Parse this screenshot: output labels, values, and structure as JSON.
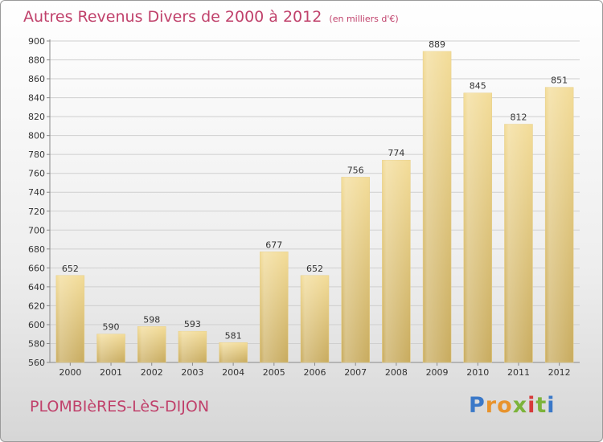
{
  "title": "Autres Revenus Divers de 2000 à 2012",
  "unit_note": "(en milliers d'€)",
  "location": "PLOMBIèRES-LèS-DIJON",
  "logo": {
    "text": "Proxiti",
    "letters": [
      "P",
      "r",
      "o",
      "x",
      "i",
      "t",
      "i"
    ],
    "colors": [
      "#3a78c8",
      "#e8932c",
      "#e8932c",
      "#7cb33a",
      "#d63a3a",
      "#7cb33a",
      "#3a78c8"
    ]
  },
  "colors": {
    "title": "#c0416b",
    "bar_top": "#f3dc98",
    "bar_bottom": "#c8ab5e",
    "grid": "#cfcfcf",
    "label": "#333333"
  },
  "chart_data": {
    "type": "bar",
    "categories": [
      "2000",
      "2001",
      "2002",
      "2003",
      "2004",
      "2005",
      "2006",
      "2007",
      "2008",
      "2009",
      "2010",
      "2011",
      "2012"
    ],
    "values": [
      652,
      590,
      598,
      593,
      581,
      677,
      652,
      756,
      774,
      889,
      845,
      812,
      851
    ],
    "ylim": [
      560,
      900
    ],
    "yticks": [
      560,
      580,
      600,
      620,
      640,
      660,
      680,
      700,
      720,
      740,
      760,
      780,
      800,
      820,
      840,
      860,
      880,
      900
    ],
    "grid": true,
    "data_labels": true
  }
}
